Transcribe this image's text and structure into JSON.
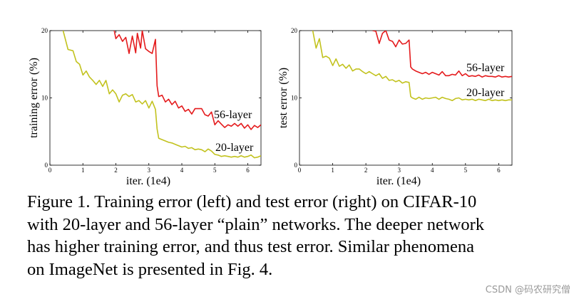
{
  "chart_data": [
    {
      "type": "line",
      "title": "",
      "xlabel": "iter. (1e4)",
      "ylabel": "training error (%)",
      "xlim": [
        0,
        6.4
      ],
      "ylim": [
        0,
        20
      ],
      "xticks": [
        0,
        1,
        2,
        3,
        4,
        5,
        6
      ],
      "yticks": [
        0,
        10,
        20
      ],
      "grid": false,
      "legend": "inline labels at line ends",
      "series": [
        {
          "name": "56-layer",
          "color": "#e41a1c",
          "x": [
            1.95,
            2.0,
            2.1,
            2.2,
            2.3,
            2.4,
            2.5,
            2.6,
            2.65,
            2.75,
            2.8,
            2.9,
            3.0,
            3.1,
            3.2,
            3.25,
            3.3,
            3.4,
            3.5,
            3.6,
            3.7,
            3.8,
            3.9,
            4.0,
            4.1,
            4.2,
            4.3,
            4.4,
            4.5,
            4.6,
            4.7,
            4.8,
            4.9,
            5.0,
            5.1,
            5.2,
            5.3,
            5.4,
            5.5,
            5.6,
            5.7,
            5.8,
            5.9,
            6.0,
            6.1,
            6.2,
            6.3,
            6.4
          ],
          "values": [
            20,
            18.8,
            19.4,
            18.4,
            19.0,
            16.6,
            19.2,
            16.7,
            19.6,
            17.4,
            20,
            17.3,
            16.9,
            16.6,
            18.7,
            11.8,
            10.2,
            10.4,
            9.4,
            9.8,
            9.0,
            9.5,
            8.5,
            8.8,
            8.0,
            8.3,
            7.6,
            8.4,
            8.4,
            8.4,
            7.5,
            7.3,
            7.9,
            6.0,
            6.6,
            6.1,
            5.6,
            6.0,
            5.8,
            6.2,
            5.8,
            6.2,
            5.5,
            6.0,
            5.3,
            5.9,
            5.6,
            6.0
          ]
        },
        {
          "name": "20-layer",
          "color": "#c2c21e",
          "x": [
            0.4,
            0.55,
            0.7,
            0.8,
            0.9,
            1.0,
            1.1,
            1.2,
            1.3,
            1.4,
            1.5,
            1.6,
            1.7,
            1.8,
            1.9,
            2.0,
            2.1,
            2.2,
            2.3,
            2.4,
            2.5,
            2.6,
            2.7,
            2.8,
            2.9,
            3.0,
            3.1,
            3.2,
            3.25,
            3.3,
            3.4,
            3.5,
            3.6,
            3.7,
            3.8,
            3.9,
            4.0,
            4.1,
            4.2,
            4.3,
            4.4,
            4.5,
            4.6,
            4.7,
            4.8,
            4.9,
            5.0,
            5.1,
            5.2,
            5.3,
            5.4,
            5.5,
            5.6,
            5.7,
            5.8,
            5.9,
            6.0,
            6.1,
            6.2,
            6.3,
            6.4
          ],
          "values": [
            20,
            17.2,
            17.0,
            15.4,
            15.0,
            13.4,
            14.0,
            13.1,
            12.6,
            12.0,
            12.6,
            11.7,
            12.6,
            10.6,
            11.2,
            10.6,
            9.4,
            10.4,
            10.6,
            10.2,
            10.5,
            9.4,
            9.6,
            9.1,
            9.6,
            8.5,
            9.5,
            8.3,
            5.4,
            4.0,
            3.8,
            3.6,
            3.4,
            3.3,
            3.1,
            2.9,
            2.7,
            2.8,
            2.5,
            2.6,
            2.3,
            2.4,
            2.3,
            2.0,
            2.4,
            2.1,
            1.6,
            1.5,
            1.3,
            1.4,
            1.3,
            1.2,
            1.3,
            1.2,
            1.4,
            1.2,
            1.3,
            1.5,
            1.1,
            1.2,
            1.4
          ]
        }
      ]
    },
    {
      "type": "line",
      "title": "",
      "xlabel": "iter. (1e4)",
      "ylabel": "test error (%)",
      "xlim": [
        0,
        6.4
      ],
      "ylim": [
        0,
        20
      ],
      "xticks": [
        0,
        1,
        2,
        3,
        4,
        5,
        6
      ],
      "yticks": [
        0,
        10,
        20
      ],
      "grid": false,
      "legend": "inline labels at line ends",
      "series": [
        {
          "name": "56-layer",
          "color": "#e41a1c",
          "x": [
            2.2,
            2.3,
            2.4,
            2.5,
            2.6,
            2.7,
            2.8,
            2.9,
            3.0,
            3.1,
            3.2,
            3.3,
            3.35,
            3.4,
            3.5,
            3.6,
            3.7,
            3.8,
            3.9,
            4.0,
            4.1,
            4.2,
            4.3,
            4.4,
            4.5,
            4.6,
            4.7,
            4.8,
            4.9,
            5.0,
            5.1,
            5.2,
            5.3,
            5.4,
            5.5,
            5.6,
            5.7,
            5.8,
            5.9,
            6.0,
            6.1,
            6.2,
            6.3,
            6.4
          ],
          "values": [
            20,
            19.9,
            18.1,
            19.6,
            20,
            18.6,
            18.4,
            17.6,
            18.6,
            18.0,
            18.1,
            18.6,
            14.6,
            14.3,
            14.0,
            13.8,
            13.6,
            13.8,
            13.5,
            13.8,
            13.6,
            13.4,
            13.9,
            13.3,
            13.3,
            13.5,
            13.4,
            14.0,
            13.3,
            13.6,
            13.2,
            13.3,
            13.2,
            13.4,
            13.1,
            13.3,
            13.2,
            13.2,
            13.1,
            13.3,
            13.1,
            13.2,
            13.1,
            13.2
          ]
        },
        {
          "name": "20-layer",
          "color": "#c2c21e",
          "x": [
            0.4,
            0.5,
            0.6,
            0.7,
            0.8,
            0.9,
            1.0,
            1.1,
            1.2,
            1.3,
            1.4,
            1.5,
            1.6,
            1.7,
            1.8,
            1.9,
            2.0,
            2.1,
            2.2,
            2.3,
            2.4,
            2.5,
            2.6,
            2.7,
            2.8,
            2.9,
            3.0,
            3.1,
            3.2,
            3.3,
            3.35,
            3.4,
            3.5,
            3.6,
            3.7,
            3.8,
            3.9,
            4.0,
            4.1,
            4.2,
            4.3,
            4.4,
            4.5,
            4.6,
            4.7,
            4.8,
            4.9,
            5.0,
            5.1,
            5.2,
            5.3,
            5.4,
            5.5,
            5.6,
            5.7,
            5.8,
            5.9,
            6.0,
            6.1,
            6.2,
            6.3,
            6.4
          ],
          "values": [
            20,
            17.4,
            18.8,
            16.0,
            16.2,
            15.9,
            14.8,
            15.8,
            14.7,
            15.0,
            14.4,
            14.9,
            14.0,
            14.3,
            14.3,
            13.9,
            13.6,
            13.9,
            13.6,
            13.3,
            13.6,
            12.9,
            13.2,
            12.6,
            12.7,
            12.4,
            12.6,
            12.2,
            12.4,
            12.3,
            10.2,
            10.0,
            9.8,
            10.1,
            9.8,
            10.0,
            9.9,
            10.0,
            10.1,
            9.8,
            10.1,
            9.9,
            9.8,
            9.6,
            9.9,
            10.0,
            9.7,
            9.8,
            9.7,
            9.8,
            9.6,
            9.8,
            9.7,
            9.6,
            9.8,
            9.6,
            9.7,
            9.6,
            9.7,
            9.6,
            9.7,
            9.7
          ]
        }
      ]
    }
  ],
  "caption": {
    "lines": [
      "Figure 1. Training error (left) and test error (right) on CIFAR-10",
      "with 20-layer and 56-layer “plain” networks. The deeper network",
      "has higher training error, and thus test error. Similar phenomena",
      "on ImageNet is presented in Fig. 4."
    ]
  },
  "watermark": "CSDN @码农研究僧"
}
